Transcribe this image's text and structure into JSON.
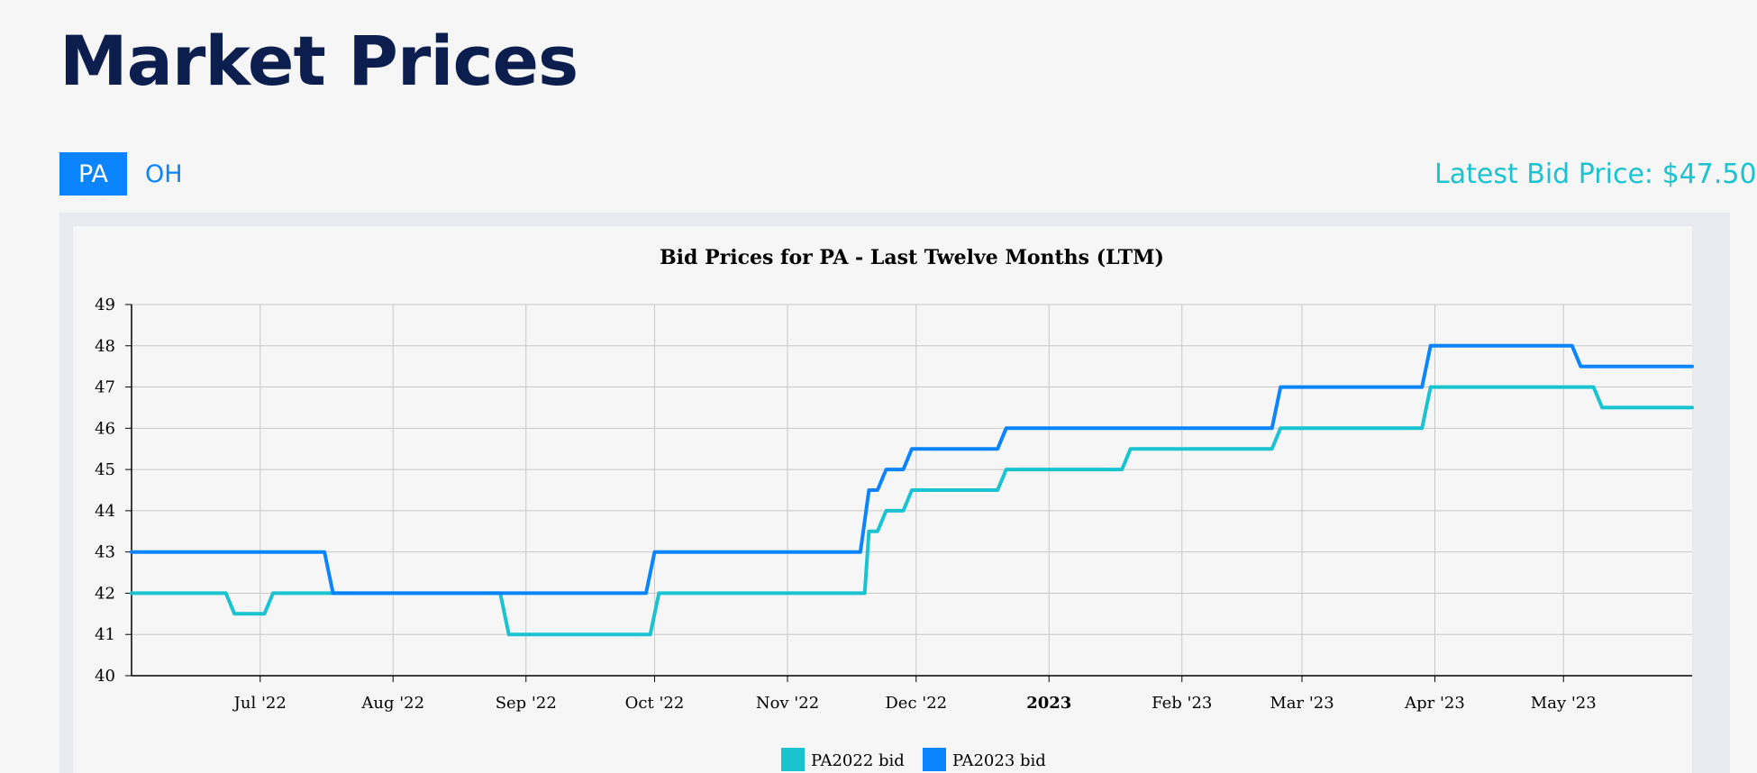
{
  "page": {
    "title": "Market Prices",
    "latest_bid": "Latest Bid Price: $47.50"
  },
  "tabs": [
    {
      "label": "PA",
      "active": true
    },
    {
      "label": "OH",
      "active": false
    }
  ],
  "colors": {
    "title": "#0c1e4e",
    "accent": "#0a84ff",
    "latest_bid": "#19c3d0",
    "series_2022": "#19c3d0",
    "series_2023": "#0a84ff"
  },
  "chart_data": {
    "type": "line",
    "title": "Bid Prices for PA - Last Twelve Months (LTM)",
    "xlabel": "",
    "ylabel": "",
    "xlim": [
      "2022-06-01",
      "2023-05-31"
    ],
    "ylim": [
      40,
      49
    ],
    "yticks": [
      40,
      41,
      42,
      43,
      44,
      45,
      46,
      47,
      48,
      49
    ],
    "xticks": [
      {
        "date": "2022-07-01",
        "label": "Jul '22",
        "bold": false
      },
      {
        "date": "2022-08-01",
        "label": "Aug '22",
        "bold": false
      },
      {
        "date": "2022-09-01",
        "label": "Sep '22",
        "bold": false
      },
      {
        "date": "2022-10-01",
        "label": "Oct '22",
        "bold": false
      },
      {
        "date": "2022-11-01",
        "label": "Nov '22",
        "bold": false
      },
      {
        "date": "2022-12-01",
        "label": "Dec '22",
        "bold": false
      },
      {
        "date": "2023-01-01",
        "label": "2023",
        "bold": true
      },
      {
        "date": "2023-02-01",
        "label": "Feb '23",
        "bold": false
      },
      {
        "date": "2023-03-01",
        "label": "Mar '23",
        "bold": false
      },
      {
        "date": "2023-04-01",
        "label": "Apr '23",
        "bold": false
      },
      {
        "date": "2023-05-01",
        "label": "May '23",
        "bold": false
      }
    ],
    "grid": true,
    "legend_position": "bottom-center",
    "series": [
      {
        "name": "PA2022 bid",
        "color": "#19c3d0",
        "points": [
          [
            "2022-06-01",
            42
          ],
          [
            "2022-06-23",
            42
          ],
          [
            "2022-06-25",
            41.5
          ],
          [
            "2022-07-02",
            41.5
          ],
          [
            "2022-07-04",
            42
          ],
          [
            "2022-08-26",
            42
          ],
          [
            "2022-08-28",
            41
          ],
          [
            "2022-09-30",
            41
          ],
          [
            "2022-10-02",
            42
          ],
          [
            "2022-11-19",
            42
          ],
          [
            "2022-11-20",
            43.5
          ],
          [
            "2022-11-22",
            43.5
          ],
          [
            "2022-11-24",
            44
          ],
          [
            "2022-11-28",
            44
          ],
          [
            "2022-11-30",
            44.5
          ],
          [
            "2022-12-20",
            44.5
          ],
          [
            "2022-12-22",
            45
          ],
          [
            "2023-01-18",
            45
          ],
          [
            "2023-01-20",
            45.5
          ],
          [
            "2023-02-22",
            45.5
          ],
          [
            "2023-02-24",
            46
          ],
          [
            "2023-03-29",
            46
          ],
          [
            "2023-03-31",
            47
          ],
          [
            "2023-05-08",
            47
          ],
          [
            "2023-05-10",
            46.5
          ],
          [
            "2023-05-31",
            46.5
          ]
        ]
      },
      {
        "name": "PA2023 bid",
        "color": "#0a84ff",
        "points": [
          [
            "2022-06-01",
            43
          ],
          [
            "2022-07-16",
            43
          ],
          [
            "2022-07-18",
            42
          ],
          [
            "2022-09-29",
            42
          ],
          [
            "2022-10-01",
            43
          ],
          [
            "2022-11-18",
            43
          ],
          [
            "2022-11-20",
            44.5
          ],
          [
            "2022-11-22",
            44.5
          ],
          [
            "2022-11-24",
            45
          ],
          [
            "2022-11-28",
            45
          ],
          [
            "2022-11-30",
            45.5
          ],
          [
            "2022-12-20",
            45.5
          ],
          [
            "2022-12-22",
            46
          ],
          [
            "2023-02-22",
            46
          ],
          [
            "2023-02-24",
            47
          ],
          [
            "2023-03-29",
            47
          ],
          [
            "2023-03-31",
            48
          ],
          [
            "2023-05-03",
            48
          ],
          [
            "2023-05-05",
            47.5
          ],
          [
            "2023-05-31",
            47.5
          ]
        ]
      }
    ]
  }
}
